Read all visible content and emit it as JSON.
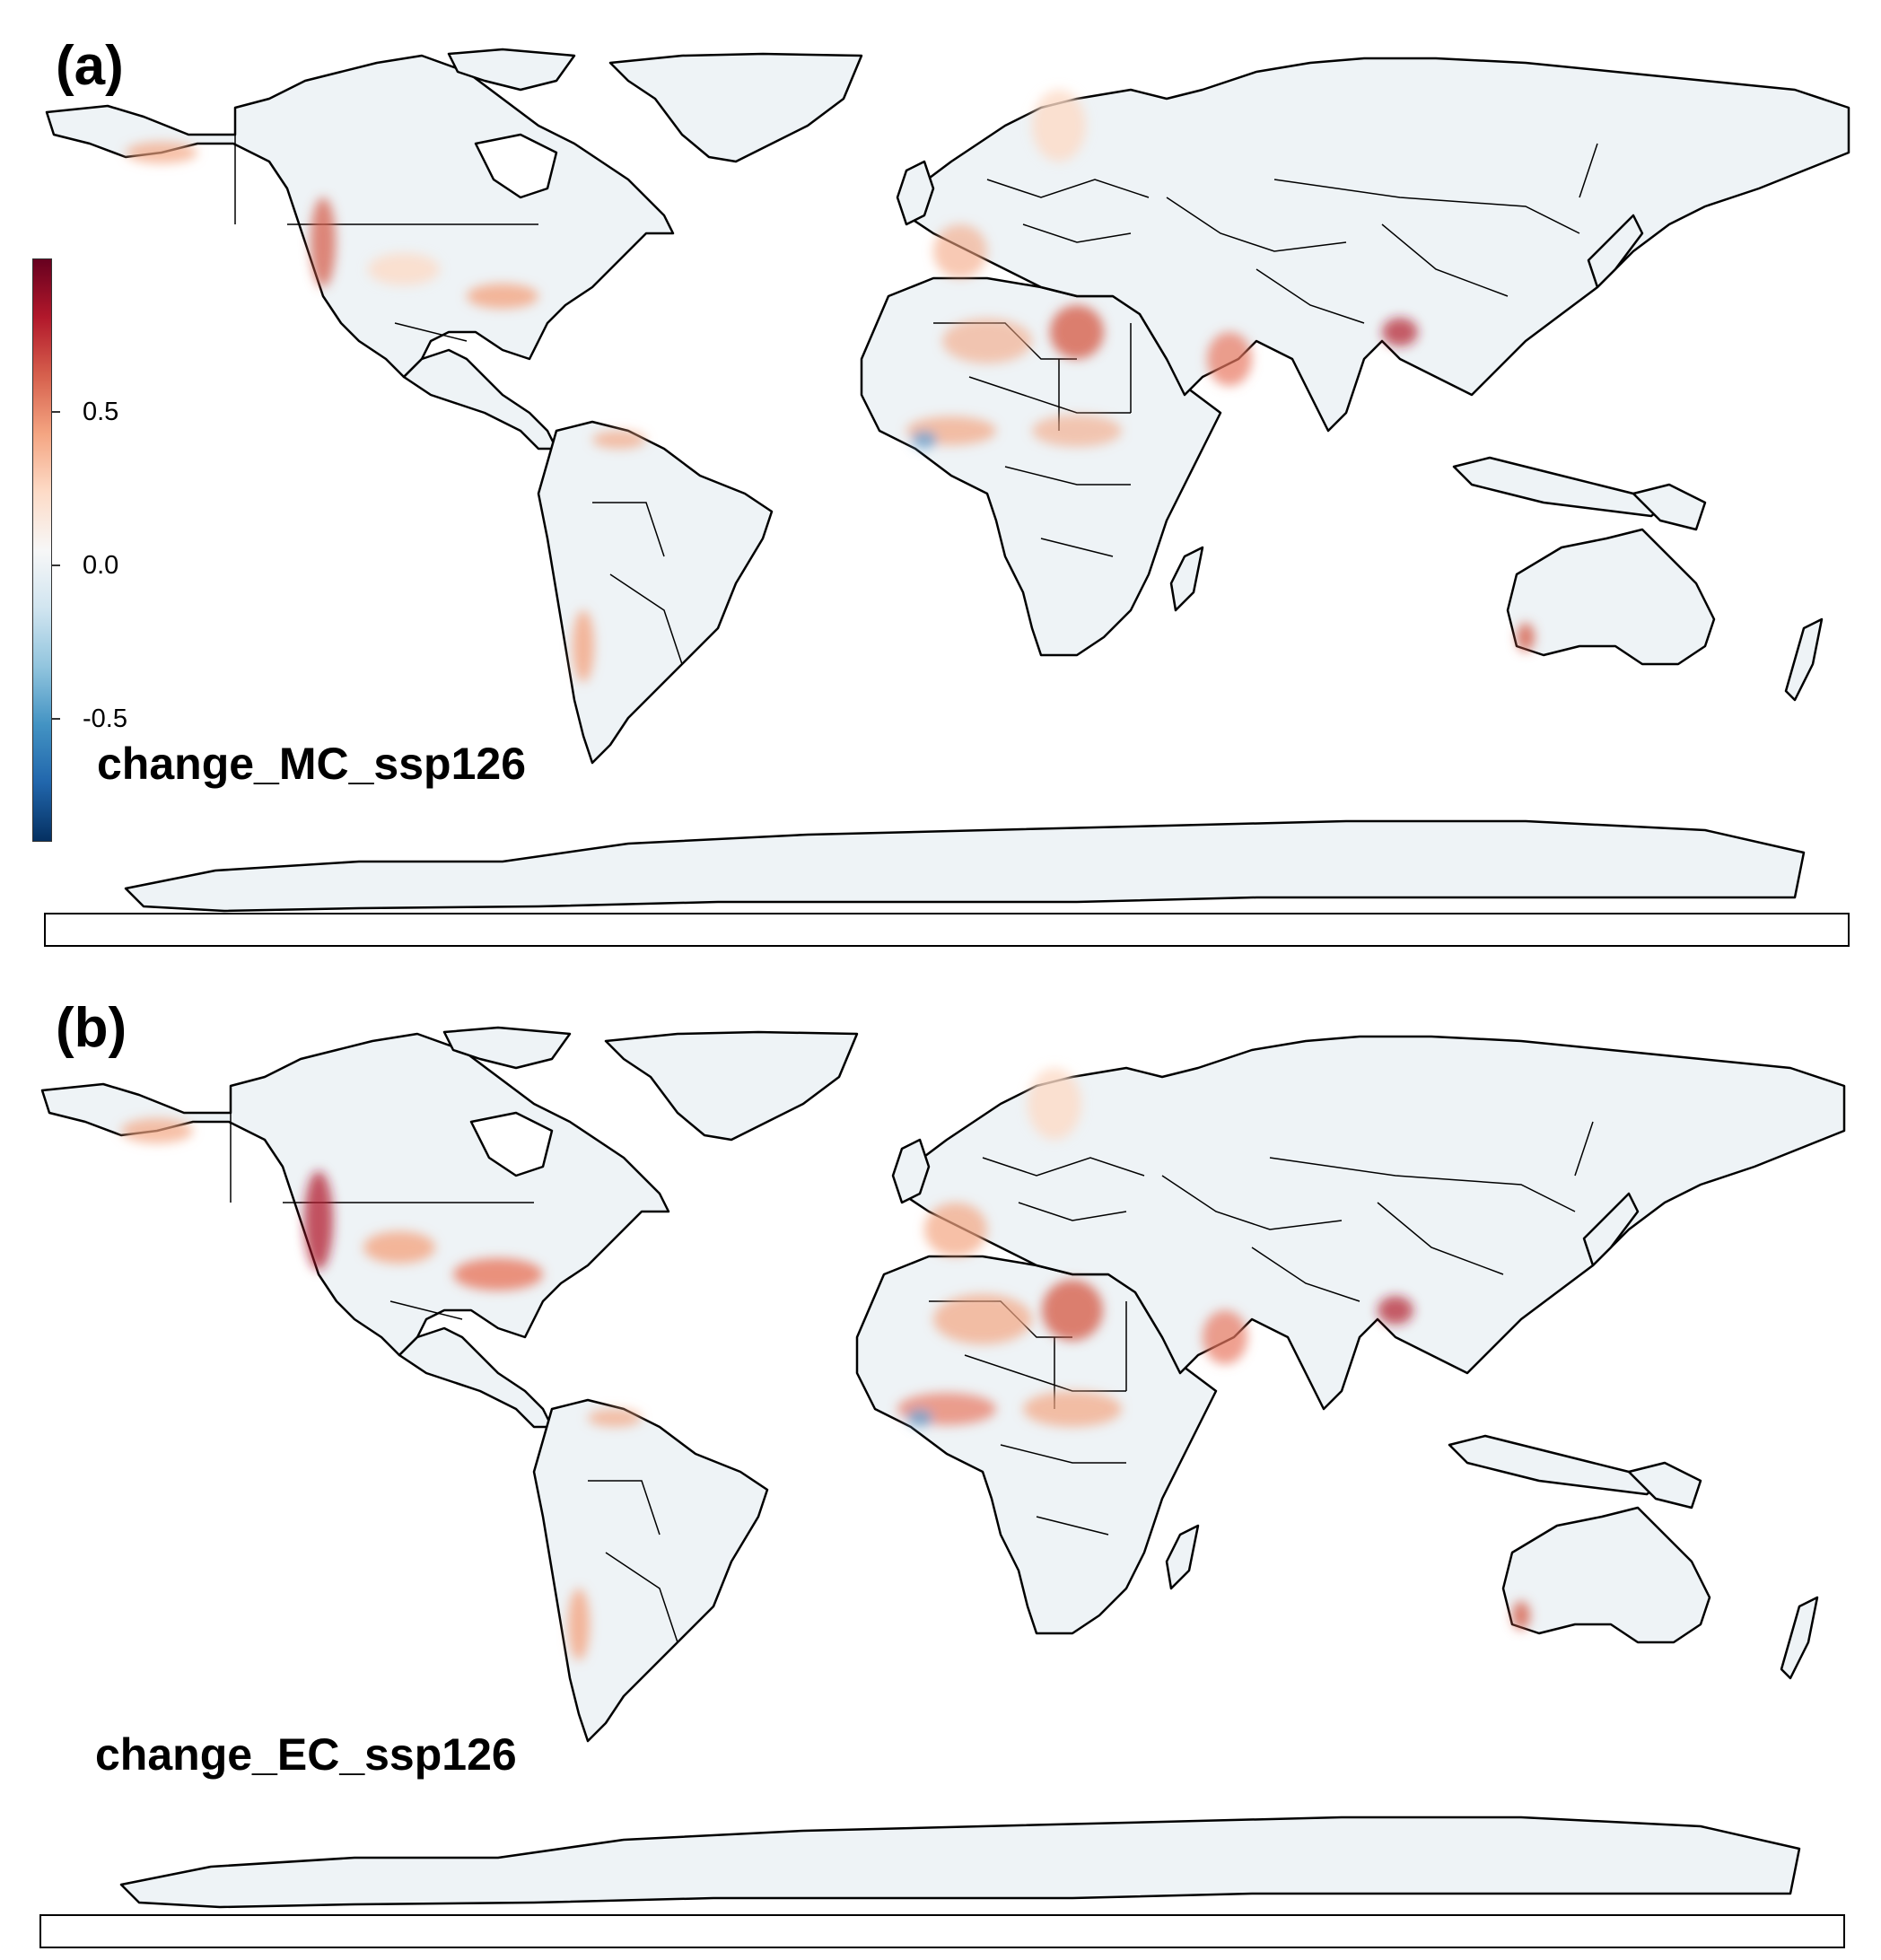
{
  "panels": [
    {
      "label": "(a)",
      "layer_name": "change_MC_ssp126",
      "colorbar": {
        "ticks": [
          {
            "value": 0.5,
            "label": "0.5"
          },
          {
            "value": 0.0,
            "label": "0.0"
          },
          {
            "value": -0.5,
            "label": "-0.5"
          }
        ],
        "range": [
          -0.9,
          0.9
        ],
        "colors": [
          "#053061",
          "#2166ac",
          "#4393c3",
          "#92c5de",
          "#d1e5f0",
          "#f7f7f7",
          "#fddbc7",
          "#f4a582",
          "#d6604d",
          "#b2182b",
          "#67001f"
        ]
      }
    },
    {
      "label": "(b)",
      "layer_name": "change_EC_ssp126"
    }
  ],
  "map_style": {
    "land_fill": "#eef3f6",
    "border_color": "#000000",
    "positive_hotspot": "#e8785f",
    "negative_hotspot": "#6fa4cf"
  }
}
